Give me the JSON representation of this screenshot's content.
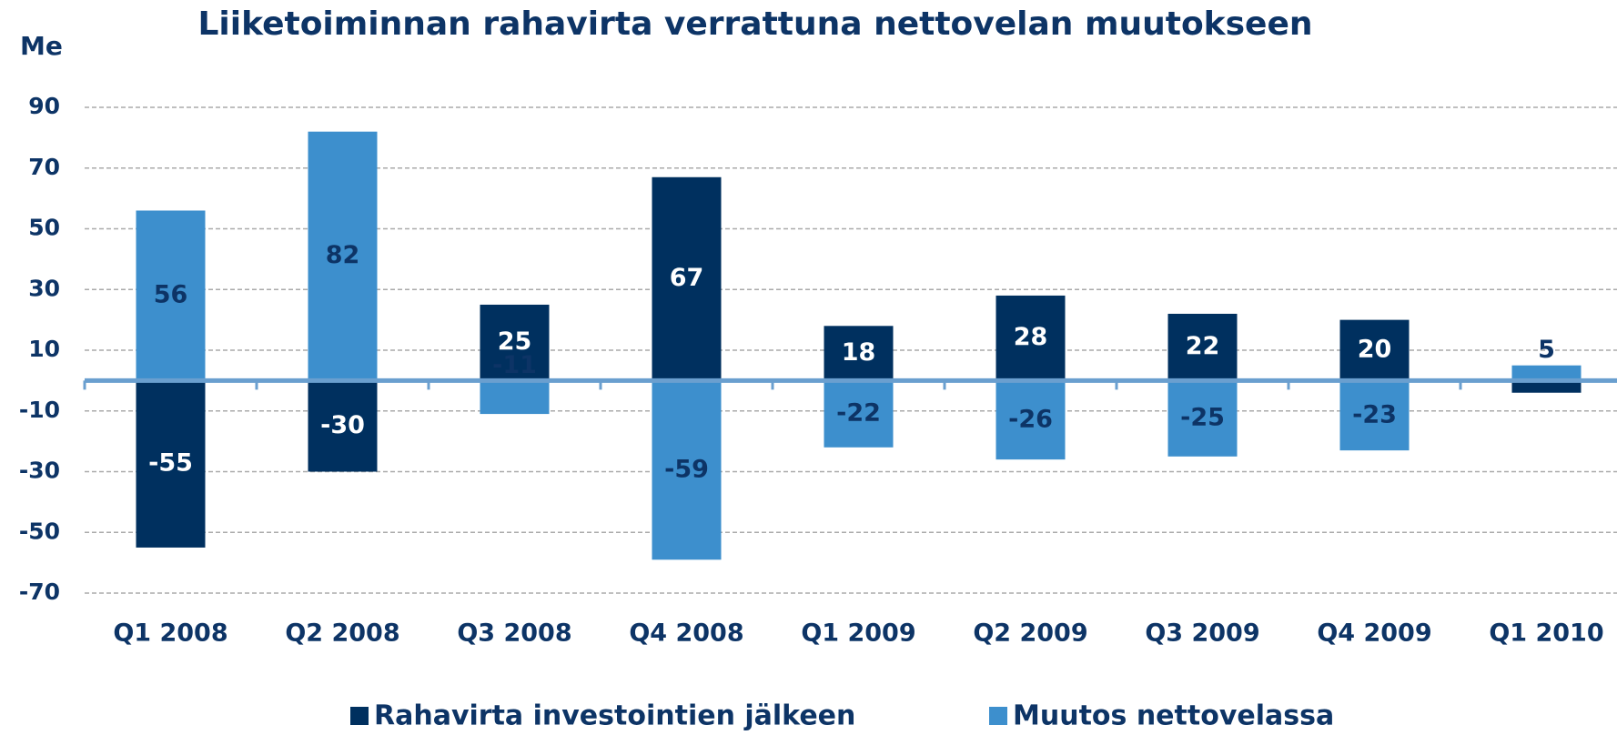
{
  "chart_data": {
    "type": "bar",
    "title": "Liiketoiminnan rahavirta verrattuna nettovelan muutokseen",
    "y_label": "Me",
    "categories": [
      "Q1 2008",
      "Q2 2008",
      "Q3 2008",
      "Q4 2008",
      "Q1 2009",
      "Q2 2009",
      "Q3 2009",
      "Q4 2009",
      "Q1 2010"
    ],
    "series": [
      {
        "name": "Rahavirta investointien jälkeen",
        "color": "#00305f",
        "label_color": "#ffffff",
        "values": [
          -55,
          -30,
          25,
          67,
          18,
          28,
          22,
          20,
          -4
        ],
        "value_labels": [
          "-55",
          "-30",
          "25",
          "67",
          "18",
          "28",
          "22",
          "20",
          null
        ]
      },
      {
        "name": "Muutos nettovelassa",
        "color": "#3d8fcd",
        "label_color": "#0d3466",
        "values": [
          56,
          82,
          -11,
          -59,
          -22,
          -26,
          -25,
          -23,
          5
        ],
        "value_labels": [
          "56",
          "82",
          "-11",
          "-59",
          "-22",
          "-26",
          "-25",
          "-23",
          "5"
        ]
      }
    ],
    "ylim": [
      -70,
      90
    ],
    "yticks": [
      -70,
      -50,
      -30,
      -10,
      10,
      30,
      50,
      70,
      90
    ],
    "grid": true,
    "legend": "bottom"
  }
}
